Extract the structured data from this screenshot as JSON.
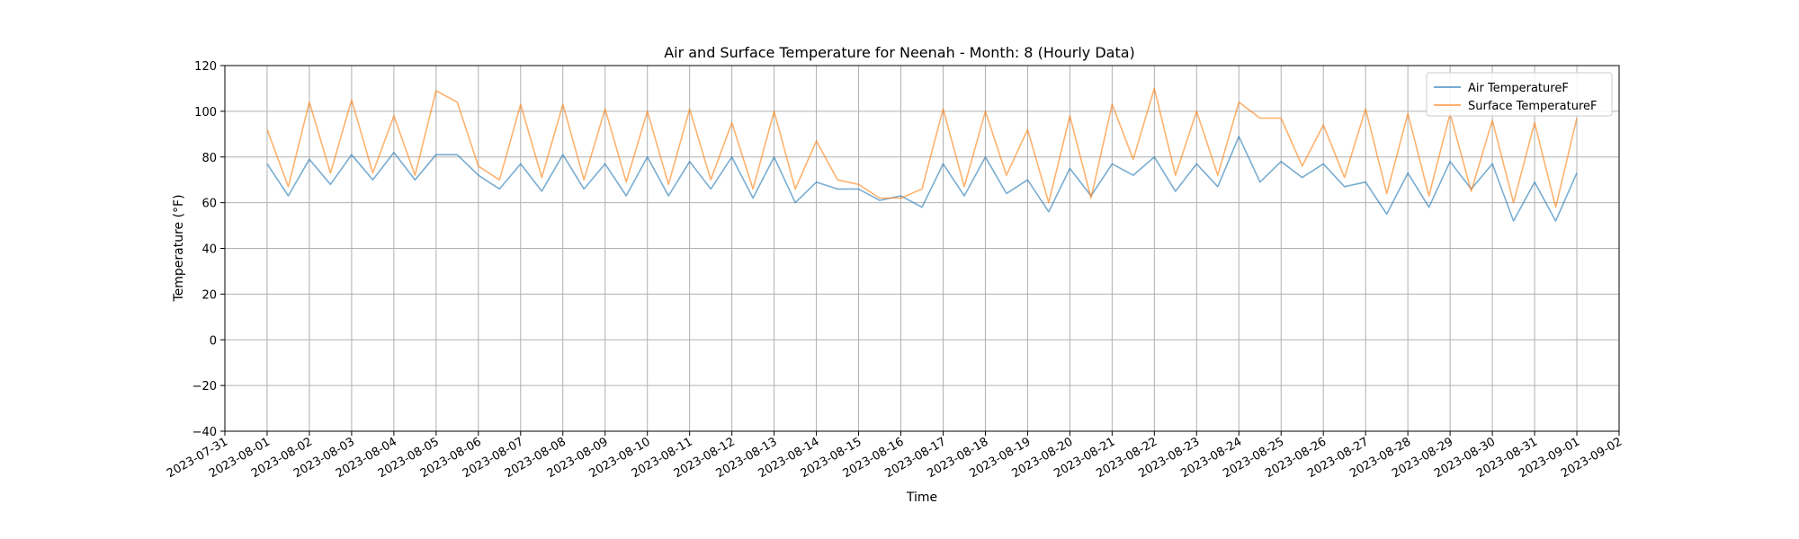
{
  "chart_data": {
    "type": "line",
    "title": "Air and Surface Temperature for Neenah - Month: 8 (Hourly Data)",
    "xlabel": "Time",
    "ylabel": "Temperature (°F)",
    "ylim": [
      -40,
      120
    ],
    "yticks": [
      -40,
      -20,
      0,
      20,
      40,
      60,
      80,
      100,
      120
    ],
    "xlim": [
      "2023-07-31",
      "2023-09-02"
    ],
    "xticks": [
      "2023-07-31",
      "2023-08-01",
      "2023-08-02",
      "2023-08-03",
      "2023-08-04",
      "2023-08-05",
      "2023-08-06",
      "2023-08-07",
      "2023-08-08",
      "2023-08-09",
      "2023-08-10",
      "2023-08-11",
      "2023-08-12",
      "2023-08-13",
      "2023-08-14",
      "2023-08-15",
      "2023-08-16",
      "2023-08-17",
      "2023-08-18",
      "2023-08-19",
      "2023-08-20",
      "2023-08-21",
      "2023-08-22",
      "2023-08-23",
      "2023-08-24",
      "2023-08-25",
      "2023-08-26",
      "2023-08-27",
      "2023-08-28",
      "2023-08-29",
      "2023-08-30",
      "2023-08-31",
      "2023-09-01",
      "2023-09-02"
    ],
    "grid": true,
    "legend_position": "top-right",
    "series": [
      {
        "name": "Air TemperatureF",
        "color": "#1f77b4",
        "x": [
          "2023-08-01",
          "2023-08-01",
          "2023-08-02",
          "2023-08-02",
          "2023-08-03",
          "2023-08-03",
          "2023-08-04",
          "2023-08-04",
          "2023-08-05",
          "2023-08-05",
          "2023-08-06",
          "2023-08-06",
          "2023-08-07",
          "2023-08-07",
          "2023-08-08",
          "2023-08-08",
          "2023-08-09",
          "2023-08-09",
          "2023-08-10",
          "2023-08-10",
          "2023-08-11",
          "2023-08-11",
          "2023-08-12",
          "2023-08-12",
          "2023-08-13",
          "2023-08-13",
          "2023-08-14",
          "2023-08-14",
          "2023-08-15",
          "2023-08-15",
          "2023-08-16",
          "2023-08-16",
          "2023-08-17",
          "2023-08-17",
          "2023-08-18",
          "2023-08-18",
          "2023-08-19",
          "2023-08-19",
          "2023-08-20",
          "2023-08-20",
          "2023-08-21",
          "2023-08-21",
          "2023-08-22",
          "2023-08-22",
          "2023-08-23",
          "2023-08-23",
          "2023-08-24",
          "2023-08-24",
          "2023-08-25",
          "2023-08-25",
          "2023-08-26",
          "2023-08-26",
          "2023-08-27",
          "2023-08-27",
          "2023-08-28",
          "2023-08-28",
          "2023-08-29",
          "2023-08-29",
          "2023-08-30",
          "2023-08-30",
          "2023-08-31",
          "2023-08-31",
          "2023-09-01"
        ],
        "y": [
          77,
          63,
          79,
          68,
          81,
          70,
          82,
          70,
          81,
          81,
          72,
          66,
          77,
          65,
          81,
          66,
          77,
          63,
          80,
          63,
          78,
          66,
          80,
          62,
          80,
          60,
          69,
          66,
          66,
          61,
          63,
          58,
          77,
          63,
          80,
          64,
          70,
          56,
          75,
          63,
          77,
          72,
          80,
          65,
          77,
          67,
          89,
          69,
          78,
          71,
          77,
          67,
          69,
          55,
          73,
          58,
          78,
          66,
          77,
          52,
          69,
          52,
          73
        ]
      },
      {
        "name": "Surface TemperatureF",
        "color": "#ff7f0e",
        "x": [
          "2023-08-01",
          "2023-08-01",
          "2023-08-02",
          "2023-08-02",
          "2023-08-03",
          "2023-08-03",
          "2023-08-04",
          "2023-08-04",
          "2023-08-05",
          "2023-08-05",
          "2023-08-06",
          "2023-08-06",
          "2023-08-07",
          "2023-08-07",
          "2023-08-08",
          "2023-08-08",
          "2023-08-09",
          "2023-08-09",
          "2023-08-10",
          "2023-08-10",
          "2023-08-11",
          "2023-08-11",
          "2023-08-12",
          "2023-08-12",
          "2023-08-13",
          "2023-08-13",
          "2023-08-14",
          "2023-08-14",
          "2023-08-15",
          "2023-08-15",
          "2023-08-16",
          "2023-08-16",
          "2023-08-17",
          "2023-08-17",
          "2023-08-18",
          "2023-08-18",
          "2023-08-19",
          "2023-08-19",
          "2023-08-20",
          "2023-08-20",
          "2023-08-21",
          "2023-08-21",
          "2023-08-22",
          "2023-08-22",
          "2023-08-23",
          "2023-08-23",
          "2023-08-24",
          "2023-08-24",
          "2023-08-25",
          "2023-08-25",
          "2023-08-26",
          "2023-08-26",
          "2023-08-27",
          "2023-08-27",
          "2023-08-28",
          "2023-08-28",
          "2023-08-29",
          "2023-08-29",
          "2023-08-30",
          "2023-08-30",
          "2023-08-31",
          "2023-08-31",
          "2023-09-01"
        ],
        "y": [
          92,
          67,
          104,
          73,
          105,
          73,
          98,
          72,
          109,
          104,
          76,
          70,
          103,
          71,
          103,
          70,
          101,
          69,
          100,
          68,
          101,
          70,
          95,
          66,
          100,
          66,
          87,
          70,
          68,
          62,
          62,
          66,
          101,
          67,
          100,
          72,
          92,
          60,
          98,
          62,
          103,
          79,
          110,
          72,
          100,
          72,
          104,
          97,
          97,
          76,
          94,
          71,
          101,
          64,
          99,
          63,
          99,
          65,
          96,
          60,
          95,
          58,
          97
        ]
      }
    ]
  }
}
